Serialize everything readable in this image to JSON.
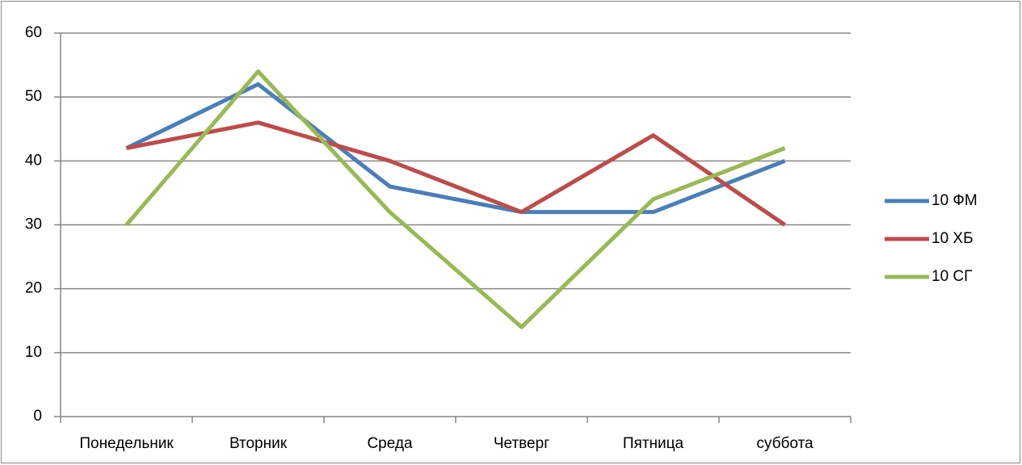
{
  "chart_data": {
    "type": "line",
    "categories": [
      "Понедельник",
      "Вторник",
      "Среда",
      "Четверг",
      "Пятница",
      "суббота"
    ],
    "series": [
      {
        "name": "10 ФМ",
        "color": "#4a7ebb",
        "values": [
          42,
          52,
          36,
          32,
          32,
          40
        ]
      },
      {
        "name": "10 ХБ",
        "color": "#be4b48",
        "values": [
          42,
          46,
          40,
          32,
          44,
          30
        ]
      },
      {
        "name": "10 СГ",
        "color": "#98b954",
        "values": [
          30,
          54,
          32,
          14,
          34,
          42
        ]
      }
    ],
    "ylim": [
      0,
      60
    ],
    "yticks": [
      0,
      10,
      20,
      30,
      40,
      50,
      60
    ],
    "grid": true,
    "legend": "right"
  }
}
